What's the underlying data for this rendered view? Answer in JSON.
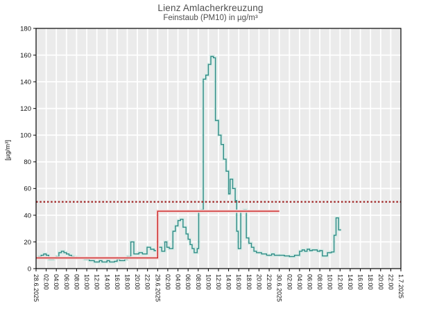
{
  "chart_data": {
    "type": "line",
    "title": "Lienz Amlacherkreuzung",
    "subtitle": "Feinstaub (PM10) in µg/m³",
    "ylabel": "[µg/m³]",
    "ylim": [
      0,
      180
    ],
    "ytick_step": 20,
    "xlim_hours": [
      0,
      72
    ],
    "grid": true,
    "legend_position": "none",
    "plot_bg": "#ebebeb",
    "grid_color": "#ffffff",
    "frame_color": "#000000",
    "tick_label_color": "#111111",
    "x_ticks": [
      {
        "h": 0,
        "label": "28.6.2025"
      },
      {
        "h": 2,
        "label": "02:00"
      },
      {
        "h": 4,
        "label": "04:00"
      },
      {
        "h": 6,
        "label": "06:00"
      },
      {
        "h": 8,
        "label": "08:00"
      },
      {
        "h": 10,
        "label": "10:00"
      },
      {
        "h": 12,
        "label": "12:00"
      },
      {
        "h": 14,
        "label": "14:00"
      },
      {
        "h": 16,
        "label": "16:00"
      },
      {
        "h": 18,
        "label": "18:00"
      },
      {
        "h": 20,
        "label": "20:00"
      },
      {
        "h": 22,
        "label": "22:00"
      },
      {
        "h": 24,
        "label": "29.6.2025"
      },
      {
        "h": 26,
        "label": "02:00"
      },
      {
        "h": 28,
        "label": "04:00"
      },
      {
        "h": 30,
        "label": "06:00"
      },
      {
        "h": 32,
        "label": "08:00"
      },
      {
        "h": 34,
        "label": "10:00"
      },
      {
        "h": 36,
        "label": "12:00"
      },
      {
        "h": 38,
        "label": "14:00"
      },
      {
        "h": 40,
        "label": "16:00"
      },
      {
        "h": 42,
        "label": "18:00"
      },
      {
        "h": 44,
        "label": "20:00"
      },
      {
        "h": 46,
        "label": "22:00"
      },
      {
        "h": 48,
        "label": "30.6.2025"
      },
      {
        "h": 50,
        "label": "02:00"
      },
      {
        "h": 52,
        "label": "04:00"
      },
      {
        "h": 54,
        "label": "06:00"
      },
      {
        "h": 56,
        "label": "08:00"
      },
      {
        "h": 58,
        "label": "10:00"
      },
      {
        "h": 60,
        "label": "12:00"
      },
      {
        "h": 62,
        "label": "14:00"
      },
      {
        "h": 64,
        "label": "16:00"
      },
      {
        "h": 66,
        "label": "18:00"
      },
      {
        "h": 68,
        "label": "20:00"
      },
      {
        "h": 70,
        "label": "22:00"
      },
      {
        "h": 72,
        "label": "1.7.2025"
      }
    ],
    "series": [
      {
        "name": "pm10-halfhour-values",
        "type": "step",
        "color": "#2e8b86",
        "halo": "#d9ece7",
        "points": [
          [
            0,
            8
          ],
          [
            0.5,
            9
          ],
          [
            1,
            10
          ],
          [
            1.5,
            11
          ],
          [
            2,
            10
          ],
          [
            2.5,
            7
          ],
          [
            3.5,
            8
          ],
          [
            4,
            9
          ],
          [
            4.5,
            12
          ],
          [
            5,
            13
          ],
          [
            5.5,
            12
          ],
          [
            6,
            11
          ],
          [
            6.5,
            10
          ],
          [
            7,
            9
          ],
          [
            7.5,
            8.5
          ],
          [
            8.5,
            8
          ],
          [
            9.5,
            7
          ],
          [
            10.5,
            6
          ],
          [
            11.5,
            5
          ],
          [
            12.5,
            6
          ],
          [
            13,
            5
          ],
          [
            14,
            6
          ],
          [
            14.5,
            5
          ],
          [
            15.5,
            5.5
          ],
          [
            16,
            7
          ],
          [
            16.5,
            6
          ],
          [
            17.5,
            7
          ],
          [
            18,
            9
          ],
          [
            18.7,
            20
          ],
          [
            19.3,
            11
          ],
          [
            20.3,
            12
          ],
          [
            21,
            11
          ],
          [
            21.9,
            16
          ],
          [
            22.6,
            14.5
          ],
          [
            23.3,
            13.5
          ],
          [
            24,
            16
          ],
          [
            24.8,
            13
          ],
          [
            25.4,
            20
          ],
          [
            25.8,
            16
          ],
          [
            26.3,
            15
          ],
          [
            27,
            28
          ],
          [
            27.5,
            32
          ],
          [
            28,
            36
          ],
          [
            28.5,
            37
          ],
          [
            29,
            31
          ],
          [
            29.6,
            26
          ],
          [
            30,
            22
          ],
          [
            30.4,
            18
          ],
          [
            30.8,
            15
          ],
          [
            31.2,
            12
          ],
          [
            31.8,
            15
          ],
          [
            32.1,
            43
          ],
          [
            32.6,
            44
          ],
          [
            33,
            142
          ],
          [
            33.5,
            145
          ],
          [
            34,
            153
          ],
          [
            34.5,
            159
          ],
          [
            35,
            158
          ],
          [
            35.4,
            111
          ],
          [
            36,
            100
          ],
          [
            36.5,
            93
          ],
          [
            37,
            82
          ],
          [
            37.5,
            73
          ],
          [
            38,
            56
          ],
          [
            38.3,
            67
          ],
          [
            38.8,
            60
          ],
          [
            39.3,
            51
          ],
          [
            39.6,
            28
          ],
          [
            39.9,
            15
          ],
          [
            40.4,
            43
          ],
          [
            41,
            44
          ],
          [
            41.5,
            23
          ],
          [
            42,
            19
          ],
          [
            42.5,
            16
          ],
          [
            43,
            13
          ],
          [
            43.5,
            12
          ],
          [
            44.5,
            11
          ],
          [
            45.5,
            10
          ],
          [
            46.5,
            11
          ],
          [
            47,
            10
          ],
          [
            48,
            10
          ],
          [
            49,
            9.5
          ],
          [
            50,
            9
          ],
          [
            51,
            10
          ],
          [
            52,
            13
          ],
          [
            52.5,
            14
          ],
          [
            53,
            13
          ],
          [
            53.5,
            14.5
          ],
          [
            54,
            13.5
          ],
          [
            54.5,
            14
          ],
          [
            55.5,
            13
          ],
          [
            56,
            13.5
          ],
          [
            56.5,
            9.5
          ],
          [
            57.5,
            12
          ],
          [
            58.3,
            12.5
          ],
          [
            58.8,
            25
          ],
          [
            59.2,
            38
          ],
          [
            59.7,
            29
          ],
          [
            60.2,
            29
          ]
        ]
      },
      {
        "name": "daily-mean-step",
        "type": "step",
        "color": "#cc2222",
        "halo": "#f3dada",
        "points": [
          [
            0,
            8
          ],
          [
            24,
            43
          ],
          [
            48,
            43
          ]
        ]
      },
      {
        "name": "limit-line-50",
        "type": "hline",
        "value": 50,
        "style": "dotted",
        "color": "#a22b2b",
        "span_hours": [
          0,
          72
        ]
      }
    ]
  }
}
